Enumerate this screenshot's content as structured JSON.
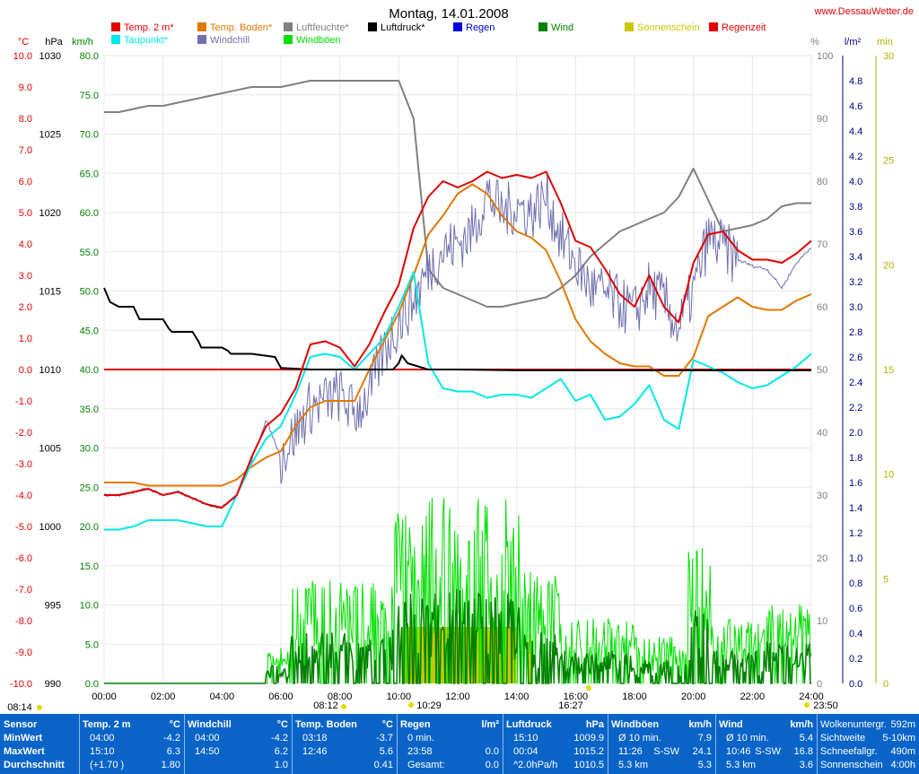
{
  "page": {
    "title": "Montag, 14.01.2008",
    "site": "www.DessauWetter.de"
  },
  "chart_data": {
    "type": "line",
    "x_range_hours": [
      0,
      24
    ],
    "x_ticks": [
      "00:00",
      "02:00",
      "04:00",
      "06:00",
      "08:00",
      "10:00",
      "12:00",
      "14:00",
      "16:00",
      "18:00",
      "20:00",
      "22:00",
      "24:00"
    ],
    "axes": {
      "temp_c": {
        "label": "°C",
        "range": [
          -10,
          10
        ],
        "ticks": [
          "10.0",
          "9.0",
          "8.0",
          "7.0",
          "6.0",
          "5.0",
          "4.0",
          "3.0",
          "2.0",
          "1.0",
          "0.0",
          "-1.0",
          "-2.0",
          "-3.0",
          "-4.0",
          "-5.0",
          "-6.0",
          "-7.0",
          "-8.0",
          "-9.0",
          "-10.0"
        ],
        "color": "#e00000"
      },
      "pressure_hpa": {
        "label": "hPa",
        "range": [
          990,
          1030
        ],
        "ticks": [
          "1030",
          "1025",
          "1020",
          "1015",
          "1010",
          "1005",
          "1000",
          "995",
          "990"
        ],
        "color": "#000000"
      },
      "wind_kmh": {
        "label": "km/h",
        "range": [
          0,
          80
        ],
        "ticks": [
          "80.0",
          "75.0",
          "70.0",
          "65.0",
          "60.0",
          "55.0",
          "50.0",
          "45.0",
          "40.0",
          "35.0",
          "30.0",
          "25.0",
          "20.0",
          "15.0",
          "10.0",
          "5.0",
          "0.0"
        ],
        "color": "#008000"
      },
      "humidity_pct": {
        "label": "%",
        "range": [
          0,
          100
        ],
        "ticks": [
          "100",
          "90",
          "80",
          "70",
          "60",
          "50",
          "40",
          "30",
          "20",
          "10",
          "0"
        ],
        "color": "#808080"
      },
      "rain_lm2": {
        "label": "l/m²",
        "range": [
          0,
          5
        ],
        "ticks": [
          "4.8",
          "4.6",
          "4.4",
          "4.2",
          "4.0",
          "3.8",
          "3.6",
          "3.4",
          "3.2",
          "3.0",
          "2.8",
          "2.6",
          "2.4",
          "2.2",
          "2.0",
          "1.8",
          "1.6",
          "1.4",
          "1.2",
          "1.0",
          "0.8",
          "0.6",
          "0.4",
          "0.2",
          "0.0"
        ],
        "color": "#000080"
      },
      "minutes": {
        "label": "min",
        "range": [
          0,
          30
        ],
        "ticks": [
          "30",
          "25",
          "20",
          "15",
          "10",
          "5",
          "0"
        ],
        "color": "#b0b000"
      }
    },
    "legend": [
      {
        "name": "Temp. 2 m*",
        "color": "#e00000"
      },
      {
        "name": "Taupunkt*",
        "color": "#00e8e8"
      },
      {
        "name": "Temp. Boden*",
        "color": "#e07800"
      },
      {
        "name": "Windchill",
        "color": "#7070b0"
      },
      {
        "name": "Luftfeuchte*",
        "color": "#808080"
      },
      {
        "name": "Windböen",
        "color": "#00e000"
      },
      {
        "name": "Luftdruck*",
        "color": "#000000"
      },
      {
        "name": "Regen",
        "color": "#0000e0"
      },
      {
        "name": "Wind",
        "color": "#008000"
      },
      {
        "name": "Sonnenschein",
        "color": "#c8c800"
      },
      {
        "name": "Regenzeit",
        "color": "#e00000"
      }
    ],
    "series": [
      {
        "key": "temp2m",
        "axis": "temp_c",
        "color": "#e00000",
        "width": 2,
        "x": [
          0,
          0.5,
          1,
          1.5,
          2,
          2.5,
          3,
          3.5,
          4,
          4.5,
          5,
          5.5,
          6,
          6.5,
          7,
          7.5,
          8,
          8.5,
          9,
          9.5,
          10,
          10.5,
          11,
          11.5,
          12,
          12.5,
          13,
          13.5,
          14,
          14.5,
          15,
          15.5,
          16,
          16.5,
          17,
          17.5,
          18,
          18.5,
          19,
          19.5,
          20,
          20.5,
          21,
          21.5,
          22,
          22.5,
          23,
          23.5,
          24
        ],
        "y": [
          -4.0,
          -4.0,
          -3.9,
          -3.8,
          -4.0,
          -3.9,
          -4.1,
          -4.3,
          -4.4,
          -4.0,
          -2.8,
          -1.8,
          -1.4,
          -0.6,
          0.8,
          0.9,
          0.7,
          0.1,
          0.8,
          1.8,
          2.7,
          4.5,
          5.5,
          6.0,
          5.8,
          6.0,
          6.3,
          6.1,
          6.2,
          6.1,
          6.3,
          5.3,
          4.1,
          3.9,
          3.2,
          2.4,
          2.0,
          3.0,
          2.0,
          1.5,
          3.4,
          4.3,
          4.4,
          3.8,
          3.5,
          3.5,
          3.4,
          3.7,
          4.1
        ]
      },
      {
        "key": "dewpoint",
        "axis": "temp_c",
        "color": "#00e8e8",
        "width": 2,
        "x": [
          0,
          0.5,
          1,
          1.5,
          2,
          2.5,
          3,
          3.5,
          4,
          4.5,
          5,
          5.5,
          6,
          6.5,
          7,
          7.5,
          8,
          8.5,
          9,
          9.5,
          10,
          10.5,
          11,
          11.5,
          12,
          12.5,
          13,
          13.5,
          14,
          14.5,
          15,
          15.5,
          16,
          16.5,
          17,
          17.5,
          18,
          18.5,
          19,
          19.5,
          20,
          20.5,
          21,
          21.5,
          22,
          22.5,
          23,
          23.5,
          24
        ],
        "y": [
          -5.1,
          -5.1,
          -5.0,
          -4.8,
          -4.8,
          -4.8,
          -4.9,
          -5.0,
          -5.0,
          -4.0,
          -3.0,
          -2.2,
          -1.8,
          -0.8,
          0.4,
          0.5,
          0.4,
          0.0,
          0.5,
          1.0,
          2.0,
          3.1,
          0.2,
          -0.6,
          -0.7,
          -0.7,
          -0.9,
          -0.8,
          -0.8,
          -0.9,
          -0.6,
          -0.3,
          -1.0,
          -0.8,
          -1.6,
          -1.5,
          -1.1,
          -0.5,
          -1.6,
          -1.9,
          0.3,
          0.1,
          -0.1,
          -0.4,
          -0.6,
          -0.5,
          -0.2,
          0.1,
          0.5
        ]
      },
      {
        "key": "soil",
        "axis": "temp_c",
        "color": "#e07800",
        "width": 2,
        "x": [
          0,
          0.5,
          1,
          1.5,
          2,
          2.5,
          3,
          3.5,
          4,
          4.5,
          5,
          5.5,
          6,
          6.5,
          7,
          7.5,
          8,
          8.5,
          9,
          9.5,
          10,
          10.5,
          11,
          11.5,
          12,
          12.5,
          13,
          13.5,
          14,
          14.5,
          15,
          15.5,
          16,
          16.5,
          17,
          17.5,
          18,
          18.5,
          19,
          19.5,
          20,
          20.5,
          21,
          21.5,
          22,
          22.5,
          23,
          23.5,
          24
        ],
        "y": [
          -3.6,
          -3.6,
          -3.6,
          -3.7,
          -3.7,
          -3.7,
          -3.7,
          -3.7,
          -3.7,
          -3.5,
          -3.1,
          -2.8,
          -2.6,
          -1.8,
          -1.2,
          -1.0,
          -1.0,
          -1.0,
          0.0,
          0.9,
          1.8,
          3.0,
          4.3,
          4.9,
          5.6,
          5.9,
          5.6,
          4.9,
          4.4,
          4.2,
          3.8,
          2.8,
          1.6,
          0.9,
          0.5,
          0.2,
          0.1,
          0.1,
          -0.2,
          -0.2,
          0.4,
          1.7,
          2.0,
          2.3,
          2.0,
          1.9,
          1.9,
          2.2,
          2.4
        ]
      },
      {
        "key": "windchill",
        "axis": "temp_c",
        "color": "#7070b0",
        "width": 1,
        "noise": true,
        "x": [
          0,
          0.5,
          1,
          1.5,
          2,
          2.5,
          3,
          3.5,
          4,
          4.5,
          5,
          5.5,
          6,
          6.5,
          7,
          7.5,
          8,
          8.5,
          9,
          9.5,
          10,
          10.5,
          11,
          11.5,
          12,
          12.5,
          13,
          13.5,
          14,
          14.5,
          15,
          15.5,
          16,
          16.5,
          17,
          17.5,
          18,
          18.5,
          19,
          19.5,
          20,
          20.5,
          21,
          21.5,
          22,
          22.5,
          23,
          23.5,
          24
        ],
        "y": [
          -4.0,
          -4.0,
          -3.9,
          -3.8,
          -4.0,
          -3.9,
          -4.1,
          -4.3,
          -4.4,
          -4.0,
          -2.9,
          -1.6,
          -2.8,
          -2.0,
          -1.2,
          -1.0,
          -0.8,
          -1.4,
          -0.8,
          0.6,
          1.5,
          2.2,
          3.2,
          3.8,
          4.0,
          4.4,
          5.6,
          5.0,
          5.2,
          5.0,
          5.5,
          4.2,
          3.4,
          2.6,
          2.4,
          2.1,
          1.8,
          2.6,
          2.2,
          1.3,
          2.5,
          4.2,
          3.9,
          3.5,
          3.3,
          3.2,
          2.6,
          3.4,
          3.9
        ]
      },
      {
        "key": "humidity",
        "axis": "humidity_pct",
        "color": "#808080",
        "width": 2,
        "x": [
          0,
          0.5,
          1,
          1.5,
          2,
          2.5,
          3,
          3.5,
          4,
          4.5,
          5,
          5.5,
          6,
          6.5,
          7,
          7.5,
          8,
          8.5,
          9,
          9.5,
          10,
          10.5,
          11,
          11.5,
          12,
          12.5,
          13,
          13.5,
          14,
          14.5,
          15,
          15.5,
          16,
          16.5,
          17,
          17.5,
          18,
          18.5,
          19,
          19.5,
          20,
          20.5,
          21,
          21.5,
          22,
          22.5,
          23,
          23.5,
          24
        ],
        "y": [
          91,
          91,
          91.5,
          92,
          92,
          92.5,
          93,
          93.5,
          94,
          94.5,
          95,
          95,
          95,
          95.5,
          96,
          96,
          96,
          96,
          96,
          96,
          96,
          90,
          66,
          63,
          62,
          61,
          60,
          60,
          60.5,
          61,
          61.5,
          63,
          65,
          68,
          70,
          72,
          73,
          74,
          75,
          77.5,
          82,
          77,
          72,
          72.5,
          73,
          74,
          76,
          76.5,
          76.5
        ]
      },
      {
        "key": "pressure",
        "axis": "pressure_hpa",
        "color": "#000000",
        "width": 2,
        "x": [
          0,
          0.2,
          0.5,
          1,
          1.2,
          2,
          2.2,
          2.3,
          3,
          3.2,
          3.3,
          4,
          4.2,
          4.3,
          5,
          5.8,
          6,
          6.5,
          7,
          8,
          9,
          9.8,
          10,
          10.1,
          10.3,
          11,
          12,
          14,
          16,
          18,
          20,
          22,
          24
        ],
        "y": [
          1015.2,
          1014.3,
          1014.0,
          1014.0,
          1013.2,
          1013.2,
          1012.6,
          1012.4,
          1012.4,
          1011.8,
          1011.4,
          1011.4,
          1011.2,
          1011.0,
          1011.0,
          1010.8,
          1010.1,
          1010.05,
          1010.0,
          1010.0,
          1010.0,
          1010.0,
          1010.4,
          1010.9,
          1010.4,
          1010.0,
          1010.0,
          1009.95,
          1009.95,
          1009.95,
          1009.95,
          1009.95,
          1009.95
        ]
      },
      {
        "key": "regenzeit",
        "axis": "temp_c",
        "color": "#e00000",
        "width": 2,
        "x": [
          0,
          24
        ],
        "y": [
          0,
          0
        ]
      }
    ],
    "bars": [
      {
        "key": "sunshine",
        "axis": "minutes",
        "color": "#c8c800",
        "x_start": 10.1,
        "x_end": 14.0,
        "value": 2.7
      },
      {
        "key": "sunshine_thin",
        "axis": "minutes",
        "color": "#c8c800",
        "x_start": 14.4,
        "x_end": 14.5,
        "value": 2.4
      }
    ],
    "wind": {
      "axis": "wind_kmh",
      "gust_color": "#00e000",
      "wind_color": "#008000"
    },
    "markers": {
      "sunrise": "08:14",
      "sunset": "16:27",
      "below_8": "08:12",
      "below_10": "10:29",
      "below_24": "23:50"
    }
  },
  "stats": {
    "blocks": [
      {
        "h1": "Sensor",
        "h2": "",
        "rows": [
          [
            "MinWert",
            "",
            ""
          ],
          [
            "MaxWert",
            "",
            ""
          ],
          [
            "Durchschnitt",
            "",
            ""
          ]
        ]
      },
      {
        "h1": "Temp. 2 m",
        "h2": "°C",
        "rows": [
          [
            "04:00",
            "",
            "-4.2"
          ],
          [
            "15:10",
            "",
            "6.3"
          ],
          [
            "(+1.70 )",
            "",
            "1.80"
          ]
        ]
      },
      {
        "h1": "Windchill",
        "h2": "°C",
        "rows": [
          [
            "04:00",
            "",
            "-4.2"
          ],
          [
            "14:50",
            "",
            "6.2"
          ],
          [
            "",
            "",
            "1.0"
          ]
        ]
      },
      {
        "h1": "Temp. Boden",
        "h2": "°C",
        "rows": [
          [
            "03:18",
            "",
            "-3.7"
          ],
          [
            "12:46",
            "",
            "5.6"
          ],
          [
            "",
            "",
            "0.41"
          ]
        ]
      },
      {
        "h1": "Regen",
        "h2": "l/m²",
        "rows": [
          [
            "0 min.",
            "",
            ""
          ],
          [
            "23:58",
            "",
            "0.0"
          ],
          [
            "Gesamt:",
            "",
            "0.0"
          ]
        ]
      },
      {
        "h1": "Luftdruck",
        "h2": "hPa",
        "rows": [
          [
            "15:10",
            "",
            "1009.9"
          ],
          [
            "00:04",
            "",
            "1015.2"
          ],
          [
            "^2.0hPa/h",
            "",
            "1010.5"
          ]
        ]
      },
      {
        "h1": "Windböen",
        "h2": "km/h",
        "rows": [
          [
            "Ø 10 min.",
            "",
            "7.9"
          ],
          [
            "11:26",
            "S-SW",
            "24.1"
          ],
          [
            "5.3 km",
            "",
            "5.3"
          ]
        ]
      },
      {
        "h1": "Wind",
        "h2": "km/h",
        "rows": [
          [
            "Ø 10 min.",
            "",
            "5.4"
          ],
          [
            "10:46",
            "S-SW",
            "16.8"
          ],
          [
            "5.3 km",
            "",
            "3.6"
          ]
        ]
      },
      {
        "h1": "",
        "h2": "",
        "rows": [
          [
            "Wolkenuntergr.",
            "",
            "592m"
          ],
          [
            "Sichtweite",
            "",
            "5-10km"
          ],
          [
            "Schneefallgr.",
            "",
            "490m"
          ],
          [
            "Sonnenschein",
            "",
            "4:00h"
          ]
        ]
      }
    ]
  }
}
